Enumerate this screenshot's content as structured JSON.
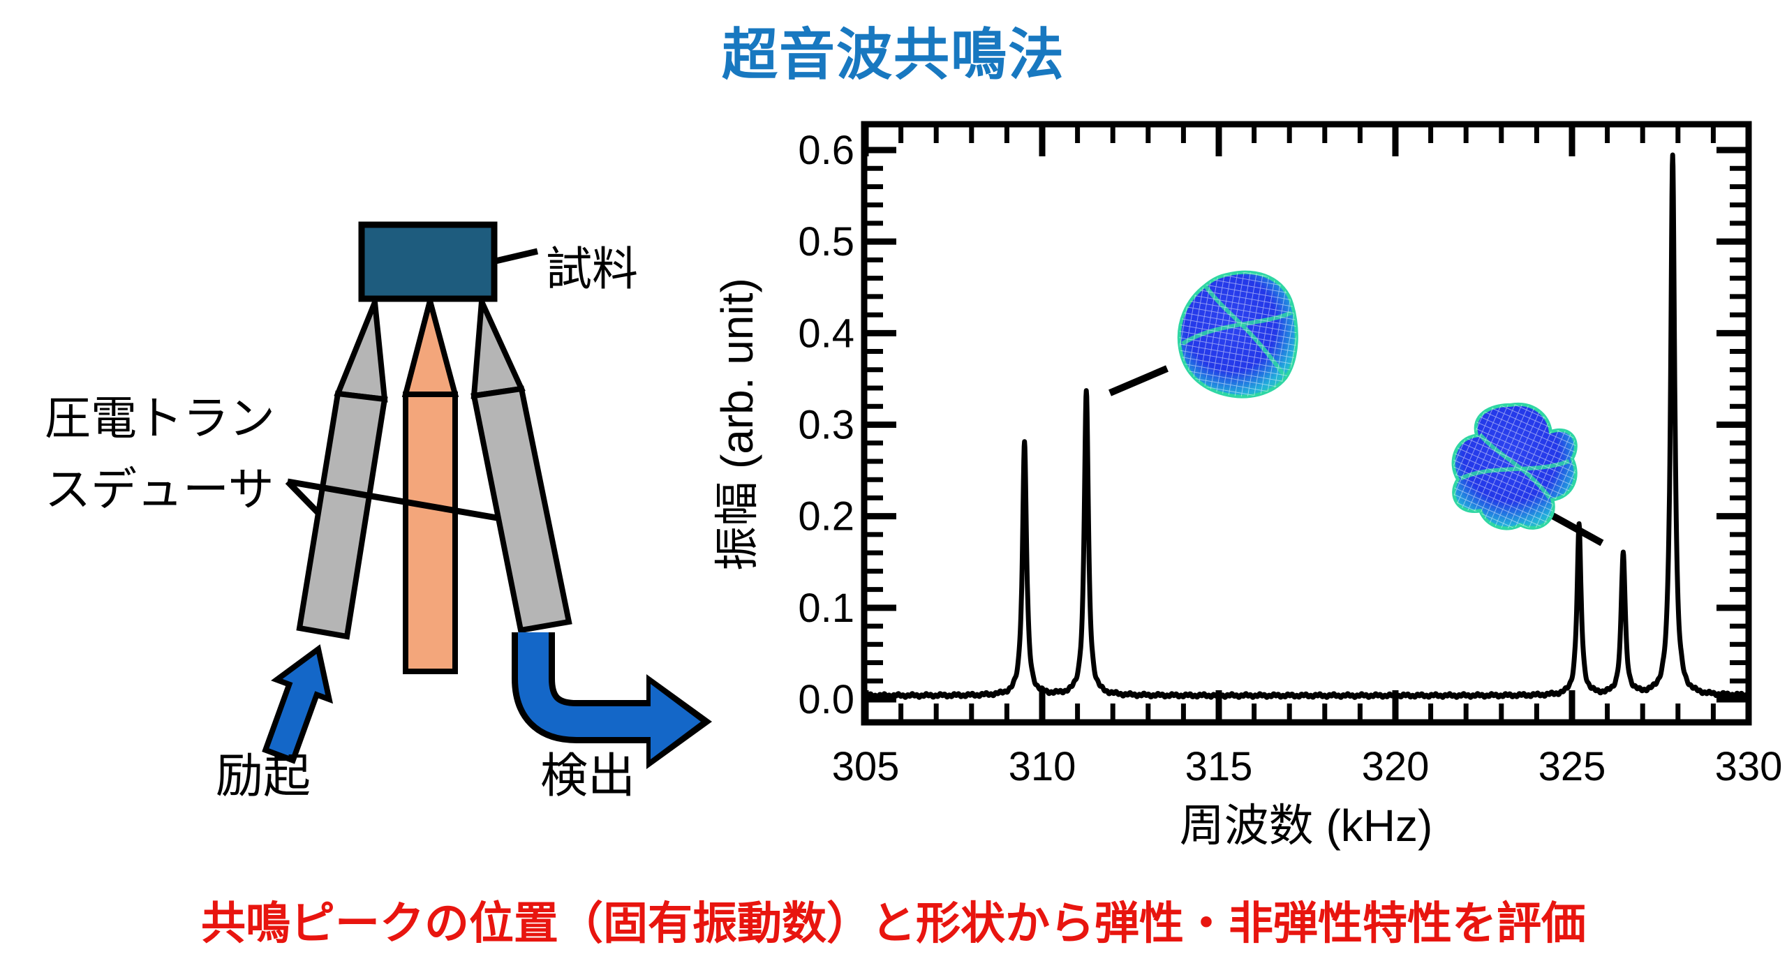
{
  "title": {
    "text": "超音波共鳴法"
  },
  "footer": {
    "text": "共鳴ピークの位置（固有振動数）と形状から弾性・非弾性特性を評価"
  },
  "diagram": {
    "sample_label": "試料",
    "transducer_label_line1": "圧電トラン",
    "transducer_label_line2": "スデューサ",
    "excitation_label": "励起",
    "detection_label": "検出"
  },
  "chart_data": {
    "type": "line",
    "title": "",
    "xlabel": "周波数 (kHz)",
    "ylabel": "振幅 (arb. unit)",
    "xlim": [
      305,
      330
    ],
    "ylim": [
      0,
      0.6
    ],
    "x_major_ticks": [
      305,
      310,
      315,
      320,
      325,
      330
    ],
    "x_minor_step_khz": 1,
    "y_major_ticks": [
      0.0,
      0.1,
      0.2,
      0.3,
      0.4,
      0.5,
      0.6
    ],
    "y_minor_step": 0.02,
    "grid": false,
    "legend": "none",
    "baseline_amplitude": 0.004,
    "peak_halfwidth_khz": 0.07,
    "peaks": [
      {
        "freq_khz": 309.5,
        "amplitude": 0.277
      },
      {
        "freq_khz": 311.25,
        "amplitude": 0.333
      },
      {
        "freq_khz": 325.2,
        "amplitude": 0.185
      },
      {
        "freq_khz": 326.45,
        "amplitude": 0.155
      },
      {
        "freq_khz": 327.85,
        "amplitude": 0.59
      }
    ],
    "annotations": [
      {
        "name": "mode-shape-1",
        "linked_peak_khz": 311.25
      },
      {
        "name": "mode-shape-2",
        "linked_peak_khz": 325.2
      }
    ]
  },
  "colors": {
    "title_blue": "#1878C0",
    "footer_red": "#E8150F",
    "sample_fill": "#1E5C7E",
    "rod_gray": "#B5B5B5",
    "rod_orange": "#F3A67B",
    "arrow_blue": "#1467C8",
    "curve_black": "#000000",
    "mode_blue": "#2338E8",
    "mode_teal": "#2FD6A4"
  }
}
